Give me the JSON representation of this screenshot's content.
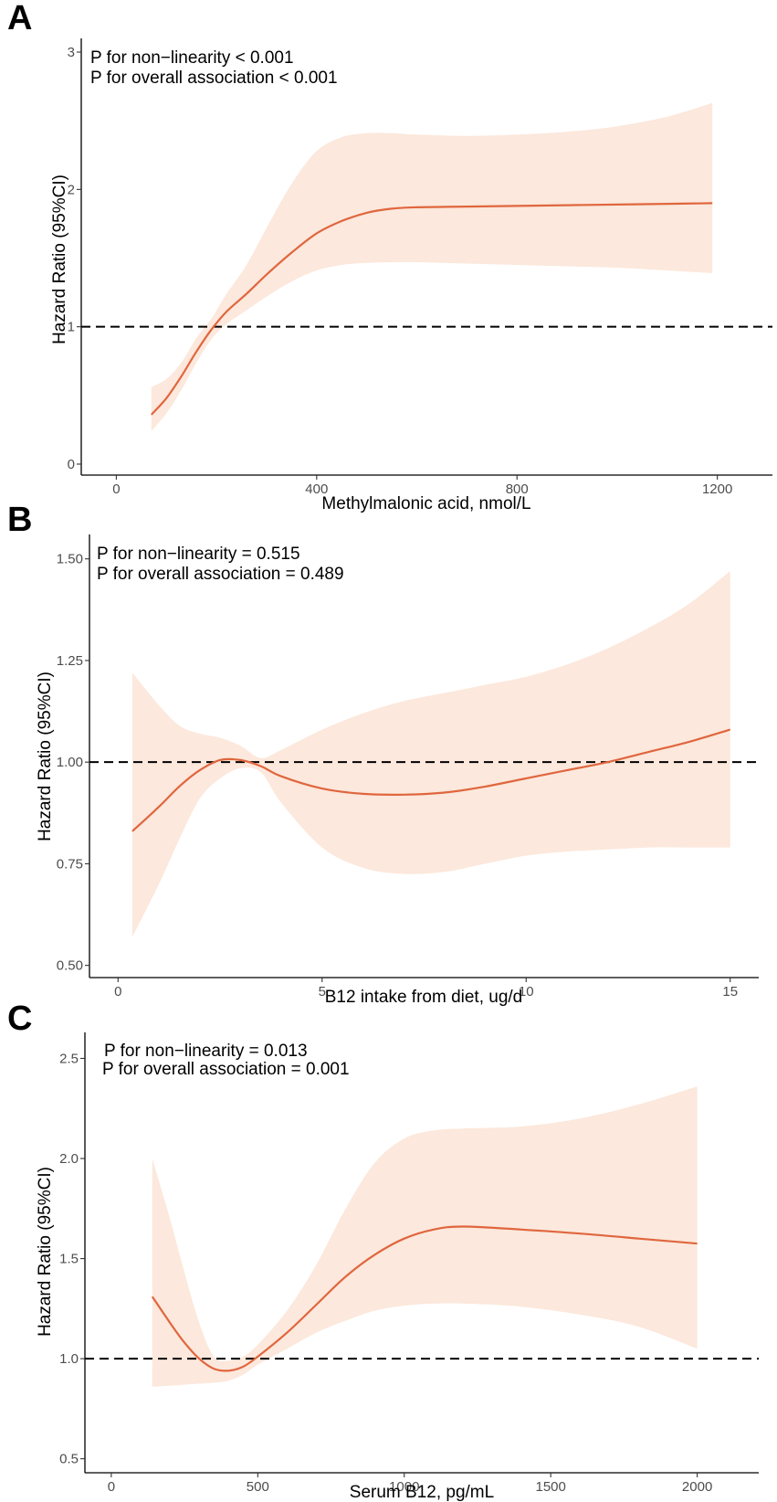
{
  "chart_data": [
    {
      "panel": "A",
      "type": "line",
      "xlabel": "Methylmalonic acid, nmol/L",
      "ylabel": "Hazard Ratio (95%CI)",
      "xlim": [
        -70,
        1310
      ],
      "ylim": [
        -0.08,
        3.1
      ],
      "xticks": [
        0,
        400,
        800,
        1200
      ],
      "xtick_labels": [
        "0",
        "400",
        "800",
        "1200"
      ],
      "yticks": [
        0,
        1,
        2,
        3
      ],
      "ytick_labels": [
        "0",
        "1",
        "2",
        "3"
      ],
      "reference_line": 1,
      "annotations": [
        "P for non−linearity < 0.001",
        "P for overall association < 0.001"
      ],
      "series": [
        {
          "name": "Hazard ratio",
          "x": [
            70,
            100,
            130,
            160,
            190,
            220,
            260,
            300,
            350,
            400,
            450,
            500,
            550,
            600,
            700,
            800,
            900,
            1000,
            1100,
            1190
          ],
          "y": [
            0.36,
            0.48,
            0.64,
            0.82,
            0.98,
            1.11,
            1.24,
            1.38,
            1.54,
            1.68,
            1.77,
            1.83,
            1.86,
            1.87,
            1.875,
            1.88,
            1.885,
            1.89,
            1.895,
            1.9
          ],
          "lower": [
            0.24,
            0.37,
            0.54,
            0.74,
            0.91,
            1.02,
            1.12,
            1.22,
            1.33,
            1.41,
            1.45,
            1.465,
            1.47,
            1.47,
            1.46,
            1.45,
            1.44,
            1.43,
            1.41,
            1.39
          ],
          "upper": [
            0.56,
            0.62,
            0.74,
            0.92,
            1.06,
            1.24,
            1.45,
            1.72,
            2.04,
            2.28,
            2.38,
            2.41,
            2.41,
            2.4,
            2.39,
            2.4,
            2.42,
            2.46,
            2.53,
            2.63
          ]
        }
      ]
    },
    {
      "panel": "B",
      "type": "line",
      "xlabel": "B12 intake from diet, ug/d",
      "ylabel": "Hazard Ratio (95%CI)",
      "xlim": [
        -0.7,
        15.7
      ],
      "ylim": [
        0.47,
        1.56
      ],
      "xticks": [
        0,
        5,
        10,
        15
      ],
      "xtick_labels": [
        "0",
        "5",
        "10",
        "15"
      ],
      "yticks": [
        0.5,
        0.75,
        1.0,
        1.25,
        1.5
      ],
      "ytick_labels": [
        "0.50",
        "0.75",
        "1.00",
        "1.25",
        "1.50"
      ],
      "reference_line": 1,
      "annotations": [
        "P for non−linearity = 0.515",
        "P for overall association = 0.489"
      ],
      "series": [
        {
          "name": "Hazard ratio",
          "x": [
            0.35,
            1,
            1.5,
            2,
            2.5,
            3,
            3.5,
            4,
            5,
            6,
            7,
            8,
            9,
            10,
            11,
            12,
            13,
            14,
            15
          ],
          "y": [
            0.83,
            0.89,
            0.94,
            0.98,
            1.005,
            1.005,
            0.99,
            0.965,
            0.935,
            0.922,
            0.92,
            0.925,
            0.94,
            0.96,
            0.98,
            1.0,
            1.025,
            1.05,
            1.08
          ],
          "lower": [
            0.57,
            0.7,
            0.81,
            0.91,
            0.96,
            0.985,
            0.975,
            0.9,
            0.79,
            0.74,
            0.725,
            0.73,
            0.75,
            0.77,
            0.78,
            0.785,
            0.79,
            0.79,
            0.79
          ],
          "upper": [
            1.22,
            1.14,
            1.09,
            1.07,
            1.06,
            1.04,
            1.01,
            1.03,
            1.08,
            1.12,
            1.15,
            1.17,
            1.19,
            1.21,
            1.24,
            1.28,
            1.33,
            1.39,
            1.47
          ]
        }
      ]
    },
    {
      "panel": "C",
      "type": "line",
      "xlabel": "Serum B12, pg/mL",
      "ylabel": "Hazard Ratio (95%CI)",
      "xlim": [
        -90,
        2210
      ],
      "ylim": [
        0.43,
        2.63
      ],
      "xticks": [
        0,
        500,
        1000,
        1500,
        2000
      ],
      "xtick_labels": [
        "0",
        "500",
        "1000",
        "1500",
        "2000"
      ],
      "yticks": [
        0.5,
        1.0,
        1.5,
        2.0,
        2.5
      ],
      "ytick_labels": [
        "0.5",
        "1.0",
        "1.5",
        "2.0",
        "2.5"
      ],
      "reference_line": 1,
      "annotations": [
        "P for non−linearity = 0.013",
        "P for overall association = 0.001"
      ],
      "series": [
        {
          "name": "Hazard ratio",
          "x": [
            140,
            200,
            250,
            300,
            350,
            400,
            450,
            500,
            600,
            700,
            800,
            900,
            1000,
            1100,
            1200,
            1400,
            1600,
            1800,
            2000
          ],
          "y": [
            1.31,
            1.18,
            1.08,
            1.0,
            0.95,
            0.94,
            0.96,
            1.01,
            1.13,
            1.27,
            1.41,
            1.52,
            1.6,
            1.645,
            1.66,
            1.645,
            1.625,
            1.6,
            1.575
          ],
          "lower": [
            0.86,
            0.865,
            0.87,
            0.875,
            0.88,
            0.89,
            0.92,
            0.97,
            1.05,
            1.13,
            1.19,
            1.24,
            1.265,
            1.275,
            1.275,
            1.26,
            1.22,
            1.16,
            1.05
          ],
          "upper": [
            2.0,
            1.7,
            1.43,
            1.18,
            1.01,
            0.99,
            1.01,
            1.07,
            1.24,
            1.47,
            1.75,
            1.98,
            2.1,
            2.14,
            2.15,
            2.16,
            2.2,
            2.27,
            2.36
          ]
        }
      ]
    }
  ]
}
